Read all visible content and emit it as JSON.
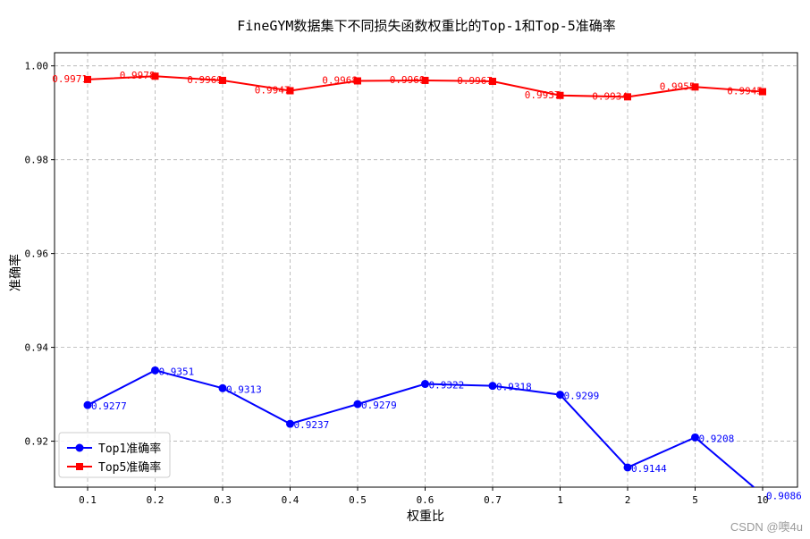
{
  "chart_data": {
    "type": "line",
    "title": "FineGYM数据集下不同损失函数权重比的Top-1和Top-5准确率",
    "xlabel": "权重比",
    "ylabel": "准确率",
    "categories": [
      "0.1",
      "0.2",
      "0.3",
      "0.4",
      "0.5",
      "0.6",
      "0.7",
      "1",
      "2",
      "5",
      "10"
    ],
    "ylim": [
      0.9102,
      1.0028
    ],
    "yticks": [
      "0.92",
      "0.94",
      "0.96",
      "0.98",
      "1.00"
    ],
    "ytick_values": [
      0.92,
      0.94,
      0.96,
      0.98,
      1.0
    ],
    "grid": true,
    "legend_position": "bottom-left",
    "series": [
      {
        "name": "Top1准确率",
        "color": "#0000ff",
        "marker": "circle",
        "values": [
          0.9277,
          0.9351,
          0.9313,
          0.9237,
          0.9279,
          0.9322,
          0.9318,
          0.9299,
          0.9144,
          0.9208,
          0.9086
        ],
        "labels": [
          "0.9277",
          "0.9351",
          "0.9313",
          "0.9237",
          "0.9279",
          "0.9322",
          "0.9318",
          "0.9299",
          "0.9144",
          "0.9208",
          "0.9086"
        ]
      },
      {
        "name": "Top5准确率",
        "color": "#ff0000",
        "marker": "square",
        "values": [
          0.9971,
          0.9978,
          0.9969,
          0.9947,
          0.9968,
          0.9969,
          0.9967,
          0.9937,
          0.9934,
          0.9955,
          0.9945
        ],
        "labels": [
          "0.9971",
          "0.9978",
          "0.9969",
          "0.9947",
          "0.9968",
          "0.9969",
          "0.9967",
          "0.9937",
          "0.9934",
          "0.9955",
          "0.9945"
        ]
      }
    ]
  },
  "watermark": "CSDN @噢4u"
}
